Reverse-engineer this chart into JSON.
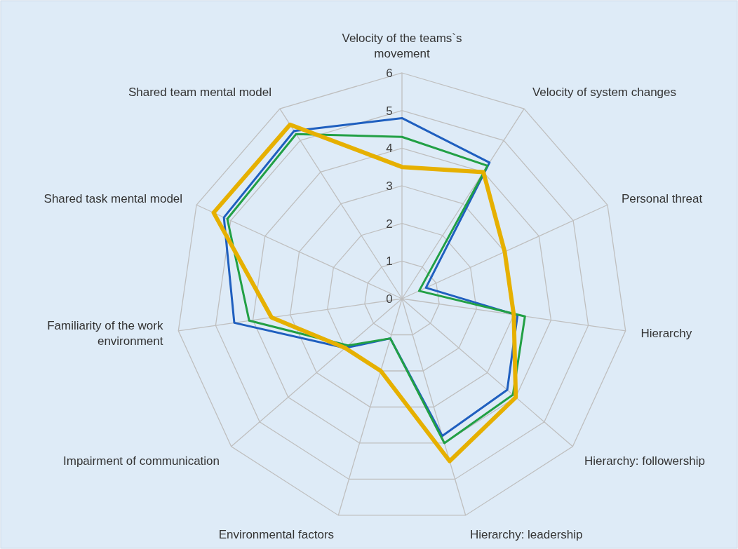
{
  "chart_data": {
    "type": "radar",
    "categories": [
      "Velocity of the teams`s movement",
      "Velocity of system changes",
      "Personal threat",
      "Hierarchy",
      "Hierarchy: followership",
      "Hierarchy: leadership",
      "Environmental factors",
      "Impairment of communication",
      "Familiarity of the work environment",
      "Shared task mental model",
      "Shared team mental model"
    ],
    "series": [
      {
        "color": "#1f5fbf",
        "values": [
          4.8,
          4.3,
          0.7,
          3.1,
          3.7,
          3.8,
          1.1,
          2.0,
          4.5,
          5.2,
          5.3
        ]
      },
      {
        "color": "#22a045",
        "values": [
          4.3,
          4.2,
          0.5,
          3.3,
          3.9,
          4.0,
          1.1,
          1.9,
          4.1,
          5.1,
          5.2
        ]
      },
      {
        "color": "#e6b000",
        "values": [
          3.5,
          4.0,
          3.0,
          3.0,
          4.0,
          4.5,
          2.0,
          2.0,
          3.5,
          5.5,
          5.5
        ]
      }
    ],
    "ylim": [
      0,
      6
    ],
    "yticks": [
      0,
      1,
      2,
      3,
      4,
      5,
      6
    ],
    "grid": true
  }
}
